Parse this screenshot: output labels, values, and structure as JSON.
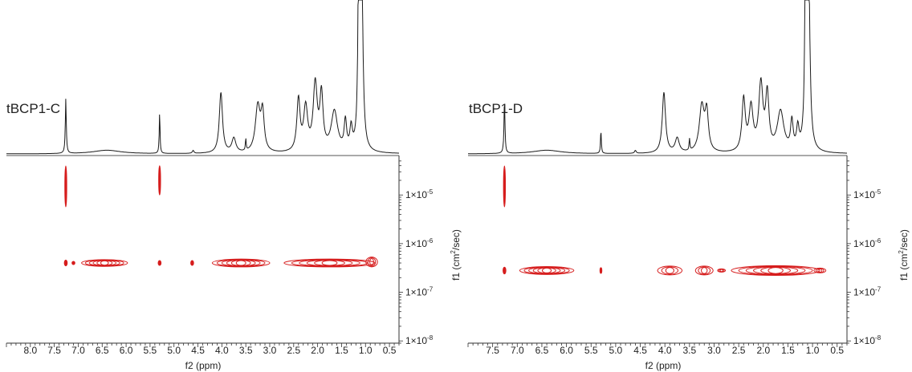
{
  "chart_data": [
    {
      "type": "contour",
      "title": "tBCP1-C",
      "xlabel": "f2 (ppm)",
      "ylabel": "f1 (cm²/sec)",
      "ylabel_main": "f1 (cm",
      "ylabel_exp": "2",
      "ylabel_end": "/sec)",
      "x_reversed": true,
      "xlim": [
        8.5,
        0.3
      ],
      "y_scale": "log",
      "ylim": [
        9e-09,
        6e-05
      ],
      "x_ticks": [
        8.0,
        7.5,
        7.0,
        6.5,
        6.0,
        5.5,
        5.0,
        4.5,
        4.0,
        3.5,
        3.0,
        2.5,
        2.0,
        1.5,
        1.0,
        0.5
      ],
      "x_tick_labels": [
        "8.0",
        "7.5",
        "7.0",
        "6.5",
        "6.0",
        "5.5",
        "5.0",
        "4.5",
        "4.0",
        "3.5",
        "3.0",
        "2.5",
        "2.0",
        "1.5",
        "1.0",
        "0.5"
      ],
      "y_ticks": [
        1e-05,
        1e-06,
        1e-07,
        1e-08
      ],
      "y_tick_base": "1×10",
      "y_tick_exponents": [
        "-5",
        "-6",
        "-7",
        "-8"
      ],
      "spectrum_peaks": [
        {
          "ppm": 7.26,
          "h": 0.38,
          "w": 0.012
        },
        {
          "ppm": 6.4,
          "h": 0.025,
          "w": 0.35
        },
        {
          "ppm": 5.3,
          "h": 0.28,
          "w": 0.01
        },
        {
          "ppm": 4.6,
          "h": 0.02,
          "w": 0.02
        },
        {
          "ppm": 4.02,
          "h": 0.42,
          "w": 0.04
        },
        {
          "ppm": 3.75,
          "h": 0.1,
          "w": 0.05
        },
        {
          "ppm": 3.5,
          "h": 0.08,
          "w": 0.01
        },
        {
          "ppm": 3.25,
          "h": 0.32,
          "w": 0.06
        },
        {
          "ppm": 3.15,
          "h": 0.26,
          "w": 0.04
        },
        {
          "ppm": 2.4,
          "h": 0.36,
          "w": 0.04
        },
        {
          "ppm": 2.25,
          "h": 0.3,
          "w": 0.05
        },
        {
          "ppm": 2.05,
          "h": 0.46,
          "w": 0.05
        },
        {
          "ppm": 1.92,
          "h": 0.38,
          "w": 0.04
        },
        {
          "ppm": 1.65,
          "h": 0.28,
          "w": 0.08
        },
        {
          "ppm": 1.42,
          "h": 0.2,
          "w": 0.03
        },
        {
          "ppm": 1.3,
          "h": 0.15,
          "w": 0.03
        },
        {
          "ppm": 1.13,
          "h": 3.5,
          "w": 0.015
        },
        {
          "ppm": 1.08,
          "h": 1.2,
          "w": 0.03
        }
      ],
      "cross_peaks": [
        {
          "x_center": 7.26,
          "x_halfwidth": 0.015,
          "y_center": 1.5e-05,
          "decades_halfheight": 0.42
        },
        {
          "x_center": 5.3,
          "x_halfwidth": 0.015,
          "y_center": 2e-05,
          "decades_halfheight": 0.3
        },
        {
          "x_center": 7.26,
          "x_halfwidth": 0.03,
          "y_center": 4e-07,
          "decades_halfheight": 0.06
        },
        {
          "x_center": 7.1,
          "x_halfwidth": 0.03,
          "y_center": 4e-07,
          "decades_halfheight": 0.03
        },
        {
          "x_center": 6.45,
          "x_halfwidth": 0.48,
          "y_center": 4e-07,
          "decades_halfheight": 0.07
        },
        {
          "x_center": 5.3,
          "x_halfwidth": 0.03,
          "y_center": 4e-07,
          "decades_halfheight": 0.05
        },
        {
          "x_center": 4.62,
          "x_halfwidth": 0.03,
          "y_center": 4e-07,
          "decades_halfheight": 0.05
        },
        {
          "x_center": 3.6,
          "x_halfwidth": 0.6,
          "y_center": 4e-07,
          "decades_halfheight": 0.08
        },
        {
          "x_center": 1.75,
          "x_halfwidth": 0.95,
          "y_center": 4e-07,
          "decades_halfheight": 0.08
        },
        {
          "x_center": 0.87,
          "x_halfwidth": 0.12,
          "y_center": 4.2e-07,
          "decades_halfheight": 0.1
        }
      ]
    },
    {
      "type": "contour",
      "title": "tBCP1-D",
      "xlabel": "f2 (ppm)",
      "ylabel": "f1 (cm²/sec)",
      "ylabel_main": "f1 (cm",
      "ylabel_exp": "2",
      "ylabel_end": "/sec)",
      "x_reversed": true,
      "xlim": [
        8.0,
        0.3
      ],
      "y_scale": "log",
      "ylim": [
        9e-09,
        6e-05
      ],
      "x_ticks": [
        7.5,
        7.0,
        6.5,
        6.0,
        5.5,
        5.0,
        4.5,
        4.0,
        3.5,
        3.0,
        2.5,
        2.0,
        1.5,
        1.0,
        0.5
      ],
      "x_tick_labels": [
        "7.5",
        "7.0",
        "6.5",
        "6.0",
        "5.5",
        "5.0",
        "4.5",
        "4.0",
        "3.5",
        "3.0",
        "2.5",
        "2.0",
        "1.5",
        "1.0",
        "0.5"
      ],
      "y_ticks": [
        1e-05,
        1e-06,
        1e-07,
        1e-08
      ],
      "y_tick_base": "1×10",
      "y_tick_exponents": [
        "-5",
        "-6",
        "-7",
        "-8"
      ],
      "spectrum_peaks": [
        {
          "ppm": 7.26,
          "h": 0.36,
          "w": 0.012
        },
        {
          "ppm": 6.4,
          "h": 0.025,
          "w": 0.35
        },
        {
          "ppm": 5.3,
          "h": 0.16,
          "w": 0.01
        },
        {
          "ppm": 4.6,
          "h": 0.02,
          "w": 0.02
        },
        {
          "ppm": 4.02,
          "h": 0.42,
          "w": 0.04
        },
        {
          "ppm": 3.75,
          "h": 0.1,
          "w": 0.05
        },
        {
          "ppm": 3.5,
          "h": 0.08,
          "w": 0.01
        },
        {
          "ppm": 3.25,
          "h": 0.32,
          "w": 0.06
        },
        {
          "ppm": 3.15,
          "h": 0.26,
          "w": 0.04
        },
        {
          "ppm": 2.4,
          "h": 0.36,
          "w": 0.04
        },
        {
          "ppm": 2.25,
          "h": 0.3,
          "w": 0.05
        },
        {
          "ppm": 2.05,
          "h": 0.46,
          "w": 0.05
        },
        {
          "ppm": 1.92,
          "h": 0.38,
          "w": 0.04
        },
        {
          "ppm": 1.65,
          "h": 0.28,
          "w": 0.08
        },
        {
          "ppm": 1.42,
          "h": 0.2,
          "w": 0.03
        },
        {
          "ppm": 1.3,
          "h": 0.15,
          "w": 0.03
        },
        {
          "ppm": 1.13,
          "h": 3.5,
          "w": 0.015
        },
        {
          "ppm": 1.08,
          "h": 1.2,
          "w": 0.03
        }
      ],
      "cross_peaks": [
        {
          "x_center": 7.26,
          "x_halfwidth": 0.015,
          "y_center": 1.5e-05,
          "decades_halfheight": 0.42
        },
        {
          "x_center": 7.26,
          "x_halfwidth": 0.03,
          "y_center": 2.8e-07,
          "decades_halfheight": 0.07
        },
        {
          "x_center": 6.4,
          "x_halfwidth": 0.55,
          "y_center": 2.8e-07,
          "decades_halfheight": 0.08
        },
        {
          "x_center": 5.3,
          "x_halfwidth": 0.02,
          "y_center": 2.8e-07,
          "decades_halfheight": 0.06
        },
        {
          "x_center": 3.9,
          "x_halfwidth": 0.25,
          "y_center": 2.8e-07,
          "decades_halfheight": 0.09
        },
        {
          "x_center": 3.2,
          "x_halfwidth": 0.18,
          "y_center": 2.8e-07,
          "decades_halfheight": 0.09
        },
        {
          "x_center": 2.85,
          "x_halfwidth": 0.08,
          "y_center": 2.8e-07,
          "decades_halfheight": 0.03
        },
        {
          "x_center": 1.75,
          "x_halfwidth": 0.9,
          "y_center": 2.8e-07,
          "decades_halfheight": 0.1
        },
        {
          "x_center": 0.85,
          "x_halfwidth": 0.12,
          "y_center": 2.8e-07,
          "decades_halfheight": 0.05
        }
      ]
    }
  ],
  "colors": {
    "contour": "#d61d1d",
    "spectrum": "#1a1a1a",
    "axis": "#333333"
  }
}
